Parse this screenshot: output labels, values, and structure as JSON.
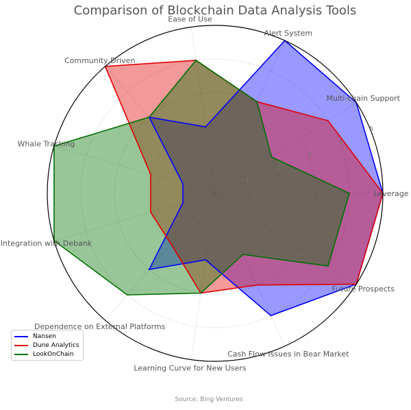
{
  "chart_data": {
    "type": "radar",
    "title": "Comparison of Blockchain Data Analysis Tools",
    "source": "Source: Bing Ventures",
    "categories": [
      "Leverage",
      "Multi-chain Support",
      "Alert System",
      "Ease of Use",
      "Community Driven",
      "Whale Tracking",
      "Integration with Debank",
      "Dependence on External Platforms",
      "Learning Curve for New Users",
      "Cash Flow Issues in Bear Market",
      "Future Prospects"
    ],
    "rlim": [
      0,
      5
    ],
    "rticks": [
      "1",
      "2",
      "3",
      "4",
      "5"
    ],
    "grid": true,
    "legend_position": "lower-left",
    "series": [
      {
        "name": "Nansen",
        "color": "#0000ff",
        "values": [
          5,
          5,
          5,
          2,
          3,
          1,
          1,
          3,
          2,
          4,
          5
        ]
      },
      {
        "name": "Dune Analytics",
        "color": "#e00000",
        "values": [
          5,
          4,
          3,
          4,
          5,
          2,
          2,
          2,
          3,
          3,
          5
        ]
      },
      {
        "name": "LookOnChain",
        "color": "#007000",
        "values": [
          4,
          2,
          3,
          4,
          3,
          5,
          5,
          4,
          3,
          2,
          4
        ]
      }
    ]
  }
}
